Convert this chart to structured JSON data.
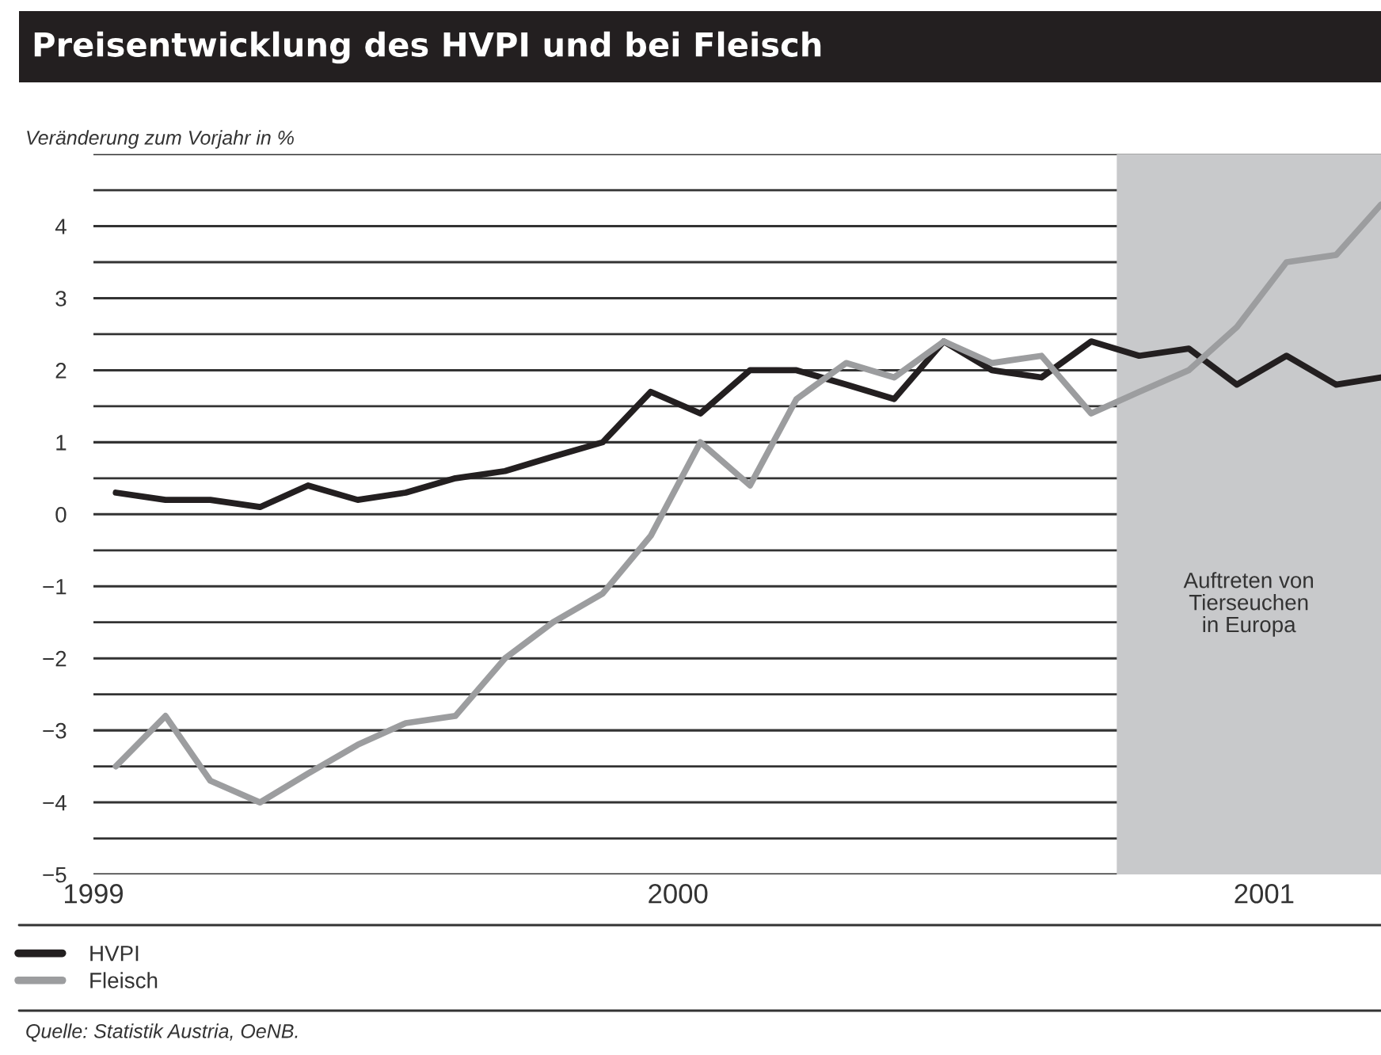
{
  "chart_data": {
    "type": "line",
    "title": "Preisentwicklung des HVPI und bei Fleisch",
    "ylabel": "Veränderung zum Vorjahr in %",
    "x": [
      "1999-01-15",
      "1999-02-15",
      "1999-03-15",
      "1999-04-15",
      "1999-05-15",
      "1999-06-15",
      "1999-07-15",
      "1999-08-15",
      "1999-09-15",
      "1999-10-15",
      "1999-11-15",
      "1999-12-15",
      "2000-01-15",
      "2000-02-15",
      "2000-03-15",
      "2000-04-15",
      "2000-05-15",
      "2000-06-15",
      "2000-07-15",
      "2000-08-15",
      "2000-09-15",
      "2000-10-15",
      "2000-11-15",
      "2000-12-15",
      "2001-01-15",
      "2001-02-15",
      "2001-03-15"
    ],
    "series": [
      {
        "name": "HVPI",
        "color": "#231f20",
        "values": [
          0.3,
          0.2,
          0.2,
          0.1,
          0.4,
          0.2,
          0.3,
          0.5,
          0.6,
          0.8,
          1.0,
          1.7,
          1.4,
          2.0,
          2.0,
          1.8,
          1.6,
          2.4,
          2.0,
          1.9,
          2.4,
          2.2,
          2.3,
          1.8,
          2.2,
          1.8,
          1.9
        ]
      },
      {
        "name": "Fleisch",
        "color": "#9c9d9f",
        "values": [
          -3.5,
          -2.8,
          -3.7,
          -4.0,
          -3.6,
          -3.2,
          -2.9,
          -2.8,
          -2.0,
          -1.5,
          -1.1,
          -0.3,
          1.0,
          0.4,
          1.6,
          2.1,
          1.9,
          2.4,
          2.1,
          2.2,
          1.4,
          1.7,
          2.0,
          2.6,
          3.5,
          3.6,
          4.3
        ]
      }
    ],
    "xlim": [
      "1999-01-01",
      "2001-03-15"
    ],
    "xticks": [
      {
        "value": "1999-01-01",
        "label": "1999"
      },
      {
        "value": "2000-01-01",
        "label": "2000"
      },
      {
        "value": "2001-01-01",
        "label": "2001"
      }
    ],
    "ylim": [
      -5,
      5
    ],
    "yticks": [
      {
        "value": -5,
        "label": "−5"
      },
      {
        "value": -4.5,
        "label": null
      },
      {
        "value": -4,
        "label": "−4"
      },
      {
        "value": -3.5,
        "label": null
      },
      {
        "value": -3,
        "label": "−3"
      },
      {
        "value": -2.5,
        "label": null
      },
      {
        "value": -2,
        "label": "−2"
      },
      {
        "value": -1.5,
        "label": null
      },
      {
        "value": -1,
        "label": "−1"
      },
      {
        "value": -0.5,
        "label": null
      },
      0,
      {
        "value": 0.5,
        "label": null
      },
      1,
      {
        "value": 1.5,
        "label": null
      },
      2,
      {
        "value": 2.5,
        "label": null
      },
      3,
      {
        "value": 3.5,
        "label": null
      },
      4,
      {
        "value": 4.5,
        "label": null
      },
      {
        "value": 5,
        "label": null
      }
    ],
    "bands": [
      {
        "axis": "x",
        "from": "2000-10-01",
        "to": "2001-03-15",
        "label": "Auftreten von\nTierseuchen\nin Europa",
        "color": "#c8c9cb"
      }
    ],
    "grid": "y",
    "legend": "bottom left",
    "marker": "none",
    "line_style": "solid",
    "annotations": [
      "Quelle: Statistik Austria, OeNB."
    ]
  }
}
